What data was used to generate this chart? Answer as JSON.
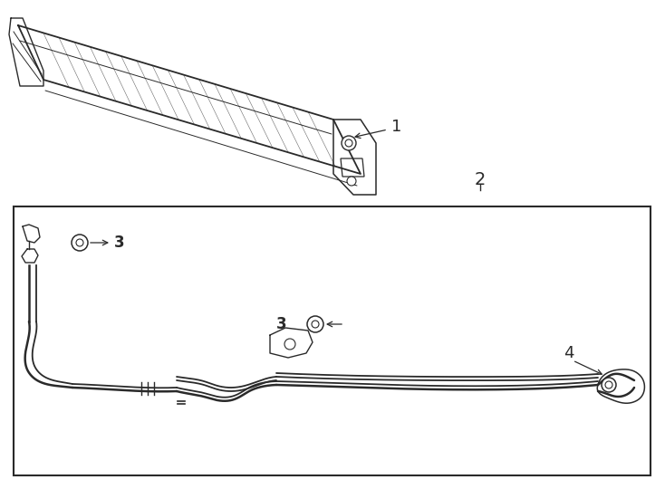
{
  "bg_color": "#ffffff",
  "line_color": "#2a2a2a",
  "fig_width": 7.34,
  "fig_height": 5.4,
  "dpi": 100,
  "label_1": "1",
  "label_2": "2",
  "label_3a": "3",
  "label_3b": "3",
  "label_4": "4"
}
